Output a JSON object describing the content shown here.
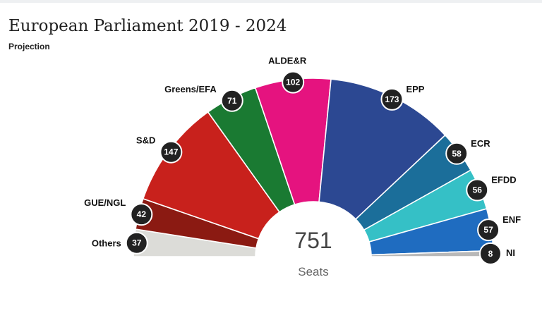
{
  "title": "European Parliament 2019 - 2024",
  "subtitle": "Projection",
  "chart_data": {
    "type": "pie",
    "variant": "semicircle-parliament",
    "total": {
      "value": "751",
      "label": "Seats"
    },
    "parties": [
      {
        "name": "Others",
        "seats": 37,
        "color": "#dcdcd8"
      },
      {
        "name": "GUE/NGL",
        "seats": 42,
        "color": "#8b1a12"
      },
      {
        "name": "S&D",
        "seats": 147,
        "color": "#c8211c"
      },
      {
        "name": "Greens/EFA",
        "seats": 71,
        "color": "#1a7a32"
      },
      {
        "name": "ALDE&R",
        "seats": 102,
        "color": "#e5137f"
      },
      {
        "name": "EPP",
        "seats": 173,
        "color": "#2c4892"
      },
      {
        "name": "ECR",
        "seats": 58,
        "color": "#1b6e9a"
      },
      {
        "name": "EFDD",
        "seats": 56,
        "color": "#35c0c6"
      },
      {
        "name": "ENF",
        "seats": 57,
        "color": "#1f6cc0"
      },
      {
        "name": "NI",
        "seats": 8,
        "color": "#b8b8b8"
      }
    ]
  }
}
